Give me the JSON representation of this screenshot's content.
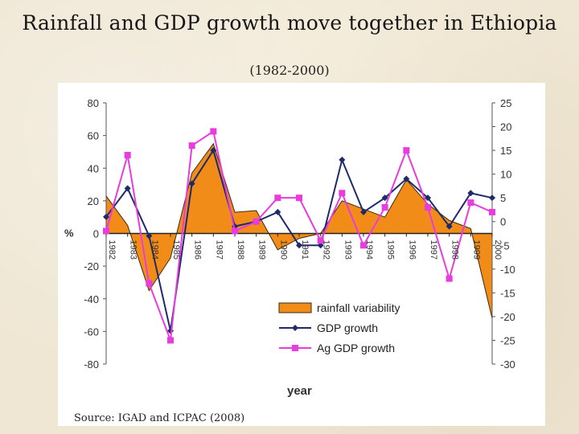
{
  "title": "Rainfall and GDP growth move together in Ethiopia",
  "subtitle": "(1982-2000)",
  "source": "Source: IGAD and ICPAC (2008)",
  "chart_data": {
    "type": "area",
    "categories": [
      "1982",
      "1983",
      "1984",
      "1985",
      "1986",
      "1987",
      "1988",
      "1989",
      "1990",
      "1991",
      "1992",
      "1993",
      "1994",
      "1995",
      "1996",
      "1997",
      "1998",
      "1999",
      "2000"
    ],
    "ylabel": "%",
    "xlabel": "year",
    "ylim_left": [
      -80,
      80
    ],
    "yticks_left": [
      "80",
      "60",
      "40",
      "20",
      "0",
      "-20",
      "-40",
      "-60",
      "-80"
    ],
    "ylim_right": [
      -30,
      25
    ],
    "yticks_right": [
      "25",
      "20",
      "15",
      "10",
      "5",
      "0",
      "-5",
      "-10",
      "-15",
      "-20",
      "-25",
      "-30"
    ],
    "legend_position": "bottom-right",
    "series": [
      {
        "name": "rainfall variability",
        "axis": "left",
        "kind": "area",
        "color": "#f28c18",
        "values": [
          23,
          5,
          -35,
          -15,
          37,
          55,
          13,
          14,
          -10,
          -3,
          0,
          20,
          15,
          10,
          33,
          18,
          8,
          3,
          -52
        ]
      },
      {
        "name": "GDP growth",
        "axis": "right",
        "kind": "line",
        "color": "#1f2a6b",
        "values": [
          1,
          7,
          -3,
          -23,
          8,
          15,
          -1,
          0,
          2,
          -5,
          -5,
          13,
          2,
          5,
          9,
          5,
          -1,
          6,
          5
        ]
      },
      {
        "name": "Ag GDP growth",
        "axis": "right",
        "kind": "line",
        "color": "#e83ce0",
        "values": [
          -2,
          14,
          -13,
          -25,
          16,
          19,
          -2,
          0,
          5,
          5,
          -4,
          6,
          -5,
          3,
          15,
          3,
          -12,
          4,
          2
        ]
      }
    ]
  }
}
